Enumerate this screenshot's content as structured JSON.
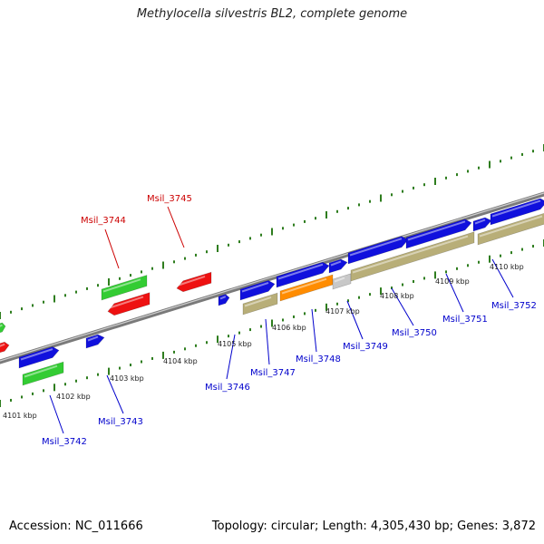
{
  "title": "Methylocella silvestris BL2, complete genome",
  "footer": {
    "accession": "Accession: NC_011666",
    "summary": "Topology: circular; Length: 4,305,430 bp; Genes: 3,872"
  },
  "colors": {
    "forward_cds": "#1010dd",
    "reverse_cds": "#ee1111",
    "gene": "#33cc33",
    "gene_reverse": "#b8ae78",
    "rna": "#ff8c00",
    "pseudo": "#c8c8c8",
    "backbone": "#7a7a7a",
    "ticks": "#2e7d1e",
    "label_forward": "#0000cc",
    "label_reverse": "#cc0000"
  },
  "scale": {
    "kbp_labels": [
      "4101 kbp",
      "4102 kbp",
      "4103 kbp",
      "4104 kbp",
      "4105 kbp",
      "4106 kbp",
      "4107 kbp",
      "4108 kbp",
      "4109 kbp",
      "4110 kbp"
    ]
  },
  "gene_labels": {
    "forward": [
      "Msil_3742",
      "Msil_3743",
      "Msil_3746",
      "Msil_3747",
      "Msil_3748",
      "Msil_3749",
      "Msil_3750",
      "Msil_3751",
      "Msil_3752"
    ],
    "reverse": [
      "Msil_3744",
      "Msil_3745"
    ]
  },
  "features": [
    {
      "type": "reverse_cds",
      "ref": "edge-left"
    },
    {
      "type": "gene",
      "ref": "edge-left"
    },
    {
      "type": "forward_cds",
      "ref": "Msil_3742"
    },
    {
      "type": "gene",
      "ref": "Msil_3742"
    },
    {
      "type": "forward_cds",
      "ref": "Msil_3743"
    },
    {
      "type": "gene",
      "ref": "Msil_3744"
    },
    {
      "type": "reverse_cds",
      "ref": "Msil_3744"
    },
    {
      "type": "reverse_cds",
      "ref": "Msil_3745"
    },
    {
      "type": "forward_cds",
      "ref": "Msil_3746"
    },
    {
      "type": "forward_cds",
      "ref": "Msil_3747"
    },
    {
      "type": "gene_reverse",
      "ref": "Msil_3747"
    },
    {
      "type": "forward_cds",
      "ref": "Msil_3748"
    },
    {
      "type": "rna",
      "ref": "Msil_3748"
    },
    {
      "type": "forward_cds",
      "ref": "Msil_3749"
    },
    {
      "type": "pseudo",
      "ref": "Msil_3749"
    },
    {
      "type": "forward_cds",
      "ref": "Msil_3750"
    },
    {
      "type": "gene_reverse",
      "ref": "Msil_3750"
    },
    {
      "type": "forward_cds",
      "ref": "Msil_3751"
    },
    {
      "type": "gene_reverse",
      "ref": "Msil_3751"
    },
    {
      "type": "forward_cds",
      "ref": "Msil_3752"
    },
    {
      "type": "forward_cds",
      "ref": "Msil_3752b"
    },
    {
      "type": "gene_reverse",
      "ref": "Msil_3752"
    }
  ]
}
